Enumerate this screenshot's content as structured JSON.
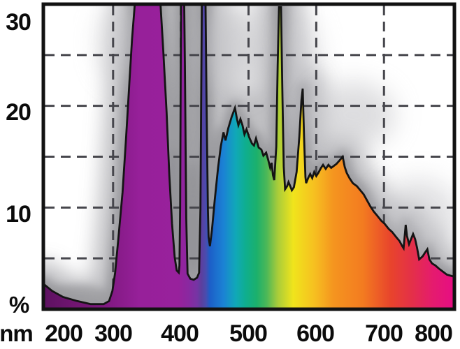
{
  "figure": {
    "description": "Lamp emission spectrum: relative intensity (%) versus wavelength (nm), area filled with visible-spectrum rainbow gradient, gray airbrush shadow above curve, dashed gridlines",
    "background_color": "#ffffff",
    "border_color": "#121212",
    "gridline_color": "#46464c",
    "shadow_color": "#a9a9ae"
  },
  "axes": {
    "x_label": "nm",
    "y_label": "%",
    "y_tick_labels": [
      "30",
      "20",
      "10"
    ],
    "x_tick_labels": [
      "200",
      "300",
      "400",
      "500",
      "600",
      "700",
      "800"
    ]
  },
  "chart_data": {
    "type": "area",
    "title": "",
    "xlabel": "nm",
    "ylabel": "%",
    "x_range_nm": [
      197,
      804
    ],
    "y_range_pct": [
      0,
      30
    ],
    "x_ticks": [
      200,
      300,
      400,
      500,
      600,
      700,
      800
    ],
    "y_ticks": [
      30,
      20,
      10
    ],
    "grid": {
      "style": "dashed",
      "x_lines_nm": [
        300,
        400,
        500,
        600,
        700
      ],
      "y_lines_pct": [
        5,
        10,
        15,
        20,
        25
      ]
    },
    "legend": "none",
    "notes": "Peaks clipped at 30%: broad 332-370nm UV band, 405nm and 436nm mercury lines, 546nm green line. 580nm spike reaches 21.7%. Blue-cyan hump peaks 19.8% at 480nm. Orange hump peaks 15.0% at 639nm, tail falls to 3.2% at 804nm.",
    "series": [
      {
        "name": "lamp emission spectrum",
        "points_nm_pct": [
          [
            197,
            2.5
          ],
          [
            210,
            1.8
          ],
          [
            226,
            1.2
          ],
          [
            247,
            0.8
          ],
          [
            267,
            0.5
          ],
          [
            286,
            0.5
          ],
          [
            294,
            0.8
          ],
          [
            299,
            1.8
          ],
          [
            303,
            3.6
          ],
          [
            308,
            7.1
          ],
          [
            314,
            11.5
          ],
          [
            319,
            16.7
          ],
          [
            324,
            22.2
          ],
          [
            328,
            26.6
          ],
          [
            332,
            30
          ],
          [
            370,
            30
          ],
          [
            374,
            25.5
          ],
          [
            379,
            19.4
          ],
          [
            383,
            13.2
          ],
          [
            387,
            8.4
          ],
          [
            391,
            5.1
          ],
          [
            394,
            3.8
          ],
          [
            397,
            3.6
          ],
          [
            398,
            4.3
          ],
          [
            399,
            10
          ],
          [
            400,
            25
          ],
          [
            400.5,
            30
          ],
          [
            405,
            30
          ],
          [
            406,
            24
          ],
          [
            408,
            9
          ],
          [
            410,
            3.5
          ],
          [
            414,
            3.0
          ],
          [
            419,
            2.9
          ],
          [
            424,
            3.1
          ],
          [
            427,
            3.6
          ],
          [
            429,
            9.8
          ],
          [
            430,
            20
          ],
          [
            431,
            30
          ],
          [
            436.5,
            30
          ],
          [
            438,
            20
          ],
          [
            440,
            9.8
          ],
          [
            441,
            7.1
          ],
          [
            443,
            6.2
          ],
          [
            446,
            7.8
          ],
          [
            450,
            10.7
          ],
          [
            455,
            13.9
          ],
          [
            459,
            16.0
          ],
          [
            463,
            17.4
          ],
          [
            466,
            16.6
          ],
          [
            470,
            17.8
          ],
          [
            475,
            18.9
          ],
          [
            480,
            19.8
          ],
          [
            483,
            18.7
          ],
          [
            485,
            18.1
          ],
          [
            488,
            18.7
          ],
          [
            491,
            18.1
          ],
          [
            494,
            17.2
          ],
          [
            497,
            17.7
          ],
          [
            501,
            16.9
          ],
          [
            505,
            16.3
          ],
          [
            508,
            16.1
          ],
          [
            511,
            16.8
          ],
          [
            515,
            15.9
          ],
          [
            519,
            15.7
          ],
          [
            522,
            15.1
          ],
          [
            526,
            15.4
          ],
          [
            529,
            14.7
          ],
          [
            532,
            13.9
          ],
          [
            534,
            14.4
          ],
          [
            536,
            13.2
          ],
          [
            538,
            12.7
          ],
          [
            541,
            16
          ],
          [
            543,
            24
          ],
          [
            545,
            29.7
          ],
          [
            548,
            29.7
          ],
          [
            550,
            21
          ],
          [
            552,
            14
          ],
          [
            554,
            11.8
          ],
          [
            557,
            12.1
          ],
          [
            559,
            12.5
          ],
          [
            561,
            12.2
          ],
          [
            564,
            11.7
          ],
          [
            567,
            12.0
          ],
          [
            571,
            13.5
          ],
          [
            575,
            17
          ],
          [
            578,
            20.5
          ],
          [
            580,
            21.7
          ],
          [
            582,
            17
          ],
          [
            584,
            13
          ],
          [
            585,
            12.4
          ],
          [
            588,
            12.9
          ],
          [
            591,
            13.3
          ],
          [
            594,
            12.9
          ],
          [
            597,
            13.5
          ],
          [
            600,
            13.1
          ],
          [
            603,
            13.4
          ],
          [
            607,
            13.9
          ],
          [
            610,
            14.2
          ],
          [
            614,
            13.8
          ],
          [
            618,
            14.2
          ],
          [
            622,
            13.9
          ],
          [
            626,
            14.1
          ],
          [
            630,
            14.3
          ],
          [
            634,
            14.6
          ],
          [
            639,
            15.0
          ],
          [
            642,
            14.0
          ],
          [
            645,
            13.4
          ],
          [
            649,
            12.9
          ],
          [
            654,
            12.4
          ],
          [
            660,
            12.1
          ],
          [
            665,
            11.7
          ],
          [
            670,
            11.3
          ],
          [
            675,
            10.7
          ],
          [
            680,
            10.1
          ],
          [
            685,
            9.6
          ],
          [
            690,
            9.2
          ],
          [
            696,
            8.7
          ],
          [
            701,
            8.4
          ],
          [
            707,
            7.9
          ],
          [
            712,
            7.6
          ],
          [
            718,
            7.1
          ],
          [
            723,
            6.7
          ],
          [
            727,
            6.2
          ],
          [
            729,
            6.0
          ],
          [
            731,
            7.5
          ],
          [
            732,
            8.3
          ],
          [
            734,
            7.2
          ],
          [
            737,
            6.4
          ],
          [
            740,
            6.9
          ],
          [
            743,
            7.4
          ],
          [
            746,
            6.9
          ],
          [
            749,
            6.0
          ],
          [
            752,
            4.9
          ],
          [
            757,
            5.2
          ],
          [
            761,
            5.6
          ],
          [
            764,
            5.9
          ],
          [
            767,
            4.9
          ],
          [
            771,
            4.5
          ],
          [
            776,
            4.3
          ],
          [
            781,
            4.0
          ],
          [
            787,
            3.7
          ],
          [
            793,
            3.4
          ],
          [
            798,
            3.3
          ],
          [
            804,
            3.2
          ]
        ]
      }
    ],
    "spectrum_gradient_stops": [
      [
        197,
        "#5c1160"
      ],
      [
        240,
        "#701570"
      ],
      [
        290,
        "#7f1980"
      ],
      [
        340,
        "#97209a"
      ],
      [
        396,
        "#98219c"
      ],
      [
        411,
        "#8a28a0"
      ],
      [
        424,
        "#7634a4"
      ],
      [
        430,
        "#5c3f9e"
      ],
      [
        437,
        "#4a4cae"
      ],
      [
        443,
        "#1c5fc8"
      ],
      [
        463,
        "#1b82d4"
      ],
      [
        481,
        "#10a8b8"
      ],
      [
        496,
        "#0fae8e"
      ],
      [
        512,
        "#1bb06c"
      ],
      [
        527,
        "#4db857"
      ],
      [
        543,
        "#a8cc3a"
      ],
      [
        566,
        "#f0e41c"
      ],
      [
        597,
        "#f6c020"
      ],
      [
        626,
        "#f5941f"
      ],
      [
        669,
        "#f37b20"
      ],
      [
        710,
        "#e8442c"
      ],
      [
        741,
        "#e43048"
      ],
      [
        772,
        "#e51b6e"
      ],
      [
        804,
        "#e60d84"
      ]
    ]
  }
}
